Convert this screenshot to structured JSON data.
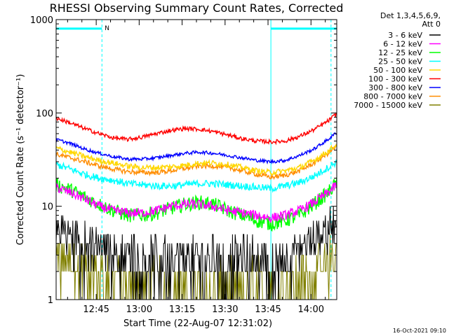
{
  "chart_data": {
    "type": "line",
    "title": "RHESSI Observing Summary Count Rates, Corrected",
    "xlabel": "Start Time (22-Aug-07 12:31:02)",
    "ylabel": "Corrected Count Rate (s⁻¹ detector⁻¹)",
    "ylog": true,
    "ylim": [
      1,
      1000
    ],
    "xlim": [
      "12:31",
      "14:09"
    ],
    "x_ticks": [
      "12:45",
      "13:00",
      "13:15",
      "13:30",
      "13:45",
      "14:00"
    ],
    "y_ticks": [
      "1",
      "10",
      "100",
      "1000"
    ],
    "legend_header": [
      "Det 1,3,4,5,6,9,",
      "Att 0"
    ],
    "legend_position": "top-right outside",
    "timestamp": "16-Oct-2021 09:10",
    "x": [
      "12:31",
      "12:36",
      "12:41",
      "12:46",
      "12:51",
      "12:56",
      "13:01",
      "13:06",
      "13:11",
      "13:16",
      "13:21",
      "13:26",
      "13:31",
      "13:36",
      "13:41",
      "13:46",
      "13:51",
      "13:56",
      "14:01",
      "14:06",
      "14:09"
    ],
    "series": [
      {
        "name": "3 - 6 keV",
        "color": "#000000",
        "values": [
          6,
          5,
          4.5,
          4,
          3.5,
          3.5,
          3.2,
          3,
          3,
          3,
          3,
          3,
          3,
          3,
          3,
          2.8,
          3,
          3.5,
          4.5,
          6,
          7.5
        ]
      },
      {
        "name": "6 - 12 keV",
        "color": "#ff00ff",
        "values": [
          16,
          14,
          12,
          10,
          9,
          8.5,
          8.5,
          9,
          10,
          10.5,
          10.5,
          10,
          9,
          8.5,
          8,
          7.5,
          8,
          9,
          11,
          14,
          17
        ]
      },
      {
        "name": "12 - 25 keV",
        "color": "#00ff00",
        "values": [
          17,
          15,
          12.5,
          10.5,
          9,
          8,
          8,
          8.5,
          9.5,
          10.5,
          11,
          10.5,
          9,
          8,
          7,
          6.5,
          7,
          8,
          10.5,
          14,
          18
        ]
      },
      {
        "name": "25 - 50 keV",
        "color": "#00ffff",
        "values": [
          28,
          25,
          22,
          20,
          19,
          17.5,
          17,
          16.5,
          16.5,
          17,
          17.5,
          17.5,
          17,
          16.5,
          16,
          15.5,
          16.5,
          18,
          21,
          26,
          30
        ]
      },
      {
        "name": "50 - 100 keV",
        "color": "#ffd700",
        "values": [
          42,
          38,
          34,
          31,
          29,
          27,
          26,
          26,
          26.5,
          27.5,
          29,
          29,
          28,
          26,
          24,
          23,
          24,
          26,
          31,
          39,
          46
        ]
      },
      {
        "name": "100 - 300 keV",
        "color": "#ff0000",
        "values": [
          88,
          78,
          68,
          60,
          54,
          52,
          55,
          60,
          65,
          68,
          67,
          63,
          58,
          53,
          50,
          49,
          50,
          56,
          66,
          82,
          98
        ]
      },
      {
        "name": "300 - 800 keV",
        "color": "#0000ff",
        "values": [
          52,
          47,
          41,
          37,
          34,
          32,
          32,
          33,
          35,
          37,
          38,
          37,
          35,
          33,
          31,
          30,
          31,
          35,
          41,
          52,
          62
        ]
      },
      {
        "name": "800 - 7000 keV",
        "color": "#ff8c00",
        "values": [
          36,
          33,
          30,
          27,
          25,
          23.5,
          23,
          23,
          24,
          25.5,
          27,
          27,
          26,
          24,
          22,
          20.5,
          21.5,
          24,
          29,
          37,
          44
        ]
      },
      {
        "name": "7000 - 15000 keV",
        "color": "#808000",
        "values": [
          3,
          2.5,
          2.2,
          2,
          1.7,
          1.6,
          1.5,
          1.5,
          1.5,
          1.5,
          1.5,
          1.5,
          1.5,
          1.5,
          1.5,
          1.5,
          1.6,
          1.8,
          2.2,
          2.8,
          3.5
        ]
      }
    ],
    "attenuator_bar": {
      "color": "#00ffff",
      "level": 800,
      "label": "N",
      "segments": [
        [
          "12:31",
          "12:47"
        ],
        [
          "13:46",
          "14:09"
        ]
      ]
    },
    "vertical_markers": [
      {
        "time": "12:47",
        "style": "dashed",
        "color": "#00ffff"
      },
      {
        "time": "13:46",
        "style": "solid",
        "color": "#00ffff"
      },
      {
        "time": "14:07",
        "style": "dashed",
        "color": "#00ffff"
      }
    ]
  }
}
